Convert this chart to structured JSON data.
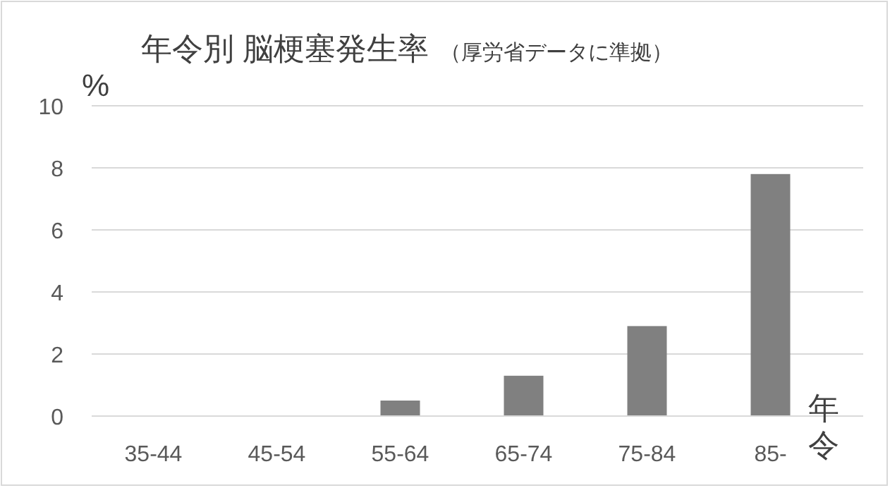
{
  "chart_data": {
    "type": "bar",
    "title": "年令別 脳梗塞発生率",
    "subtitle": "（厚労省データに準拠）",
    "ylabel": "%",
    "xlabel": "年令",
    "categories": [
      "35-44",
      "45-54",
      "55-64",
      "65-74",
      "75-84",
      "85-"
    ],
    "values": [
      0,
      0,
      0.5,
      1.3,
      2.9,
      7.8
    ],
    "color": "#808080",
    "ylim": [
      0,
      10
    ],
    "yticks": [
      0,
      2,
      4,
      6,
      8,
      10
    ],
    "grid": "y"
  }
}
